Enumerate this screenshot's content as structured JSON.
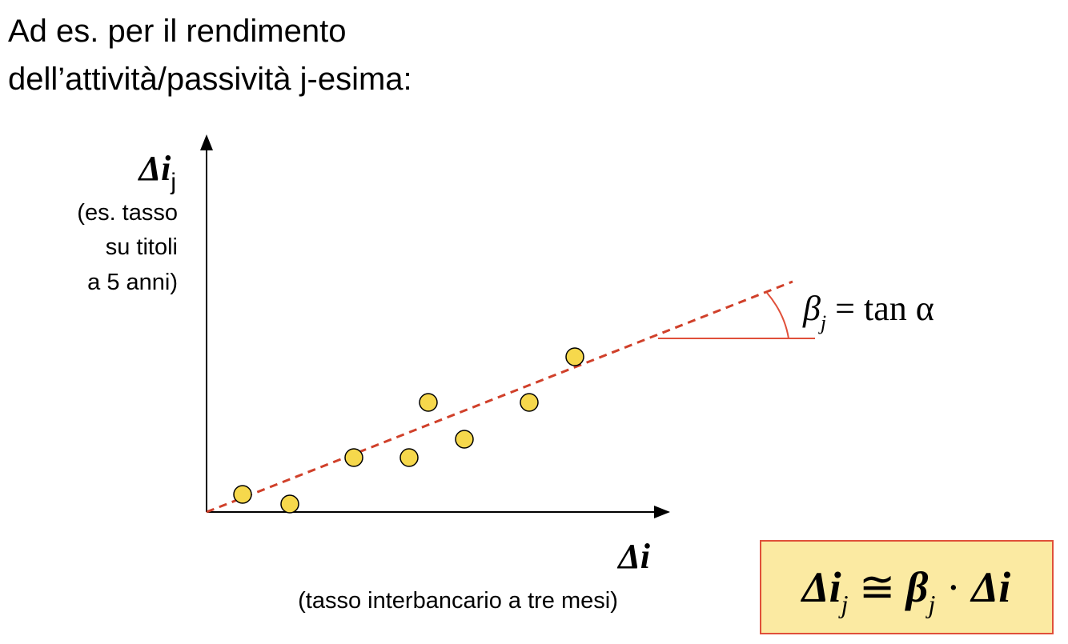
{
  "header": {
    "lines": [
      "Ad es. per il rendimento",
      "dell’attività/passività j-esima:"
    ]
  },
  "y_axis": {
    "symbol": "Δi",
    "subscript": "j",
    "note_lines": [
      "(es. tasso",
      "su titoli",
      "a 5 anni)"
    ]
  },
  "x_axis": {
    "symbol": "Δi",
    "note": "(tasso interbancario a tre mesi)"
  },
  "slope_annotation": {
    "beta": "β",
    "beta_sub": "j",
    "rest": " = tan α"
  },
  "formula": {
    "lhs": "Δi",
    "lhs_sub": "j",
    "rel": " ≅ ",
    "beta": "β",
    "beta_sub": "j",
    "op": " · ",
    "rhs": "Δi"
  }
}
